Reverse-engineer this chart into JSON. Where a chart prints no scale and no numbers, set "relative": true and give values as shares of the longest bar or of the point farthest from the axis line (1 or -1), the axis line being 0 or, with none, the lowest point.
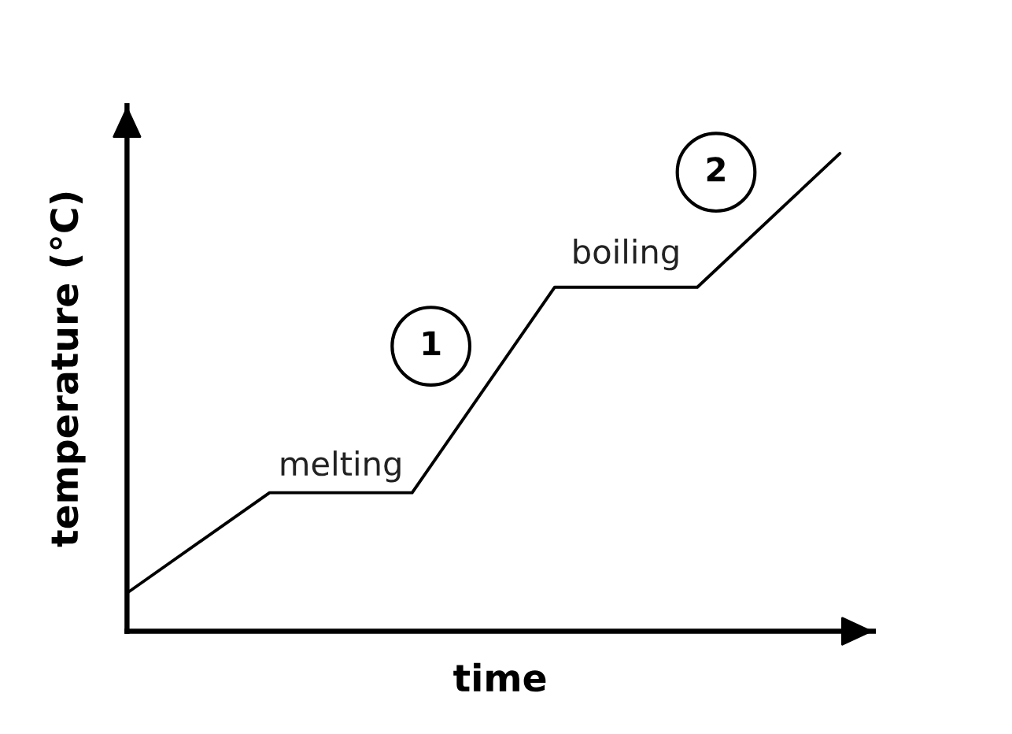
{
  "chart_data": {
    "type": "line",
    "relative": true,
    "xlabel": "time",
    "ylabel": "temperature (°C)",
    "categories": [
      null,
      null,
      null,
      null,
      null,
      null
    ],
    "series": [
      {
        "color": "#000000",
        "values": [
          0.08,
          0.29,
          0.29,
          0.72,
          0.72,
          1
        ]
      }
    ],
    "line_style": "solid",
    "annotations": [
      {
        "text": "melting",
        "y": 0.29
      },
      {
        "text": "boiling",
        "y": 0.72
      },
      "1",
      "2"
    ]
  }
}
